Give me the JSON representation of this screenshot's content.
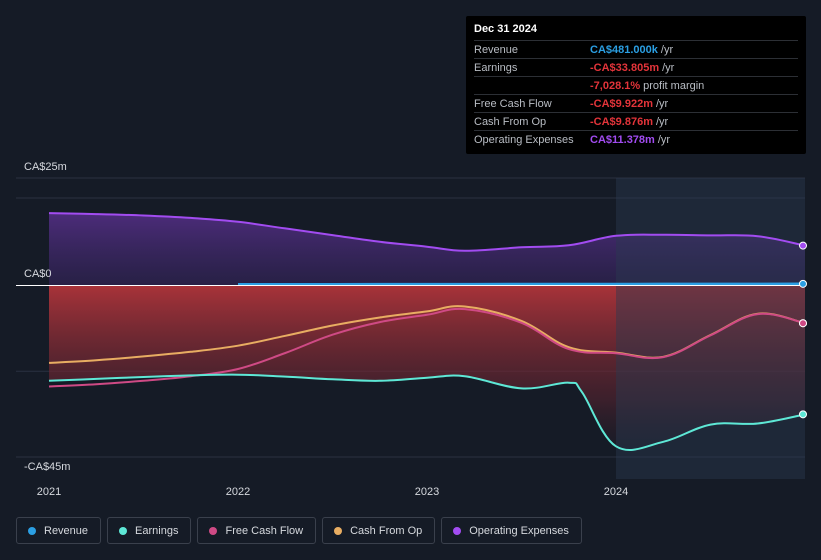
{
  "colors": {
    "revenue": "#2b9fe3",
    "earnings": "#5ee8d6",
    "free_cash_flow": "#cf4a85",
    "cash_from_op": "#e8ad62",
    "operating_expenses": "#a24cf1",
    "background": "#151b26"
  },
  "tooltip": {
    "date": "Dec 31 2024",
    "rows": [
      {
        "label": "Revenue",
        "value": "CA$481.000k",
        "unit": "/yr",
        "color": "#2b9fe3"
      },
      {
        "label": "Earnings",
        "value": "-CA$33.805m",
        "unit": "/yr",
        "color": "#e3343a"
      },
      {
        "label": "",
        "value": "-7,028.1%",
        "unit": "profit margin",
        "color": "#e3343a"
      },
      {
        "label": "Free Cash Flow",
        "value": "-CA$9.922m",
        "unit": "/yr",
        "color": "#e3343a"
      },
      {
        "label": "Cash From Op",
        "value": "-CA$9.876m",
        "unit": "/yr",
        "color": "#e3343a"
      },
      {
        "label": "Operating Expenses",
        "value": "CA$11.378m",
        "unit": "/yr",
        "color": "#a24cf1"
      }
    ]
  },
  "legend": [
    {
      "label": "Revenue",
      "color": "#2b9fe3"
    },
    {
      "label": "Earnings",
      "color": "#5ee8d6"
    },
    {
      "label": "Free Cash Flow",
      "color": "#cf4a85"
    },
    {
      "label": "Cash From Op",
      "color": "#e8ad62"
    },
    {
      "label": "Operating Expenses",
      "color": "#a24cf1"
    }
  ],
  "chart_data": {
    "type": "line",
    "y_unit": "CA$m",
    "ylim": [
      -45,
      25
    ],
    "y_tick_labels": [
      {
        "value": 25,
        "label": "CA$25m"
      },
      {
        "value": 0,
        "label": "CA$0"
      },
      {
        "value": -45,
        "label": "-CA$45m"
      }
    ],
    "x_tick_labels": [
      {
        "value": 2021.0,
        "label": "2021"
      },
      {
        "value": 2022.0,
        "label": "2022"
      },
      {
        "value": 2023.0,
        "label": "2023"
      },
      {
        "value": 2024.0,
        "label": "2024"
      }
    ],
    "xlim": [
      2020.85,
      2025.0
    ],
    "highlight_from": 2024.0,
    "series": [
      {
        "name": "Operating Expenses",
        "key": "operating_expenses",
        "x": [
          2021.0,
          2021.25,
          2021.5,
          2021.75,
          2022.0,
          2022.25,
          2022.5,
          2022.75,
          2023.0,
          2023.2,
          2023.5,
          2023.75,
          2024.0,
          2024.25,
          2024.5,
          2024.75,
          2025.0
        ],
        "y": [
          20.7,
          20.4,
          20.0,
          19.3,
          18.2,
          16.3,
          14.4,
          12.5,
          11.1,
          9.9,
          10.9,
          11.5,
          14.2,
          14.5,
          14.3,
          14.1,
          11.4
        ]
      },
      {
        "name": "Revenue",
        "key": "revenue",
        "x": [
          2022.0,
          2022.5,
          2023.0,
          2023.5,
          2024.0,
          2024.5,
          2025.0
        ],
        "y": [
          0.35,
          0.38,
          0.4,
          0.42,
          0.44,
          0.46,
          0.48
        ]
      },
      {
        "name": "Cash From Op",
        "key": "cash_from_op",
        "x": [
          2021.0,
          2021.25,
          2021.5,
          2021.75,
          2022.0,
          2022.25,
          2022.5,
          2022.75,
          2023.0,
          2023.2,
          2023.5,
          2023.75,
          2024.0,
          2024.25,
          2024.5,
          2024.75,
          2025.0
        ],
        "y": [
          -20.3,
          -19.6,
          -18.6,
          -17.4,
          -15.8,
          -13.2,
          -10.5,
          -8.4,
          -6.8,
          -5.5,
          -9.3,
          -16.2,
          -17.6,
          -18.7,
          -13.0,
          -7.4,
          -9.9
        ]
      },
      {
        "name": "Free Cash Flow",
        "key": "free_cash_flow",
        "x": [
          2021.0,
          2021.25,
          2021.5,
          2021.75,
          2022.0,
          2022.25,
          2022.5,
          2022.75,
          2023.0,
          2023.2,
          2023.5,
          2023.75,
          2024.0,
          2024.25,
          2024.5,
          2024.75,
          2025.0
        ],
        "y": [
          -26.5,
          -25.9,
          -25.0,
          -23.8,
          -21.9,
          -17.7,
          -12.9,
          -9.6,
          -7.7,
          -6.2,
          -9.8,
          -16.7,
          -17.8,
          -18.8,
          -13.1,
          -7.5,
          -9.9
        ]
      },
      {
        "name": "Earnings",
        "key": "earnings",
        "x": [
          2021.0,
          2021.25,
          2021.5,
          2021.75,
          2022.0,
          2022.25,
          2022.5,
          2022.75,
          2023.0,
          2023.2,
          2023.5,
          2023.75,
          2023.82,
          2024.0,
          2024.25,
          2024.5,
          2024.75,
          2025.0
        ],
        "y": [
          -25.0,
          -24.5,
          -24.0,
          -23.6,
          -23.4,
          -23.9,
          -24.6,
          -25.0,
          -24.2,
          -23.8,
          -27.0,
          -25.5,
          -28.0,
          -42.2,
          -41.0,
          -36.5,
          -36.2,
          -33.8
        ]
      }
    ]
  }
}
